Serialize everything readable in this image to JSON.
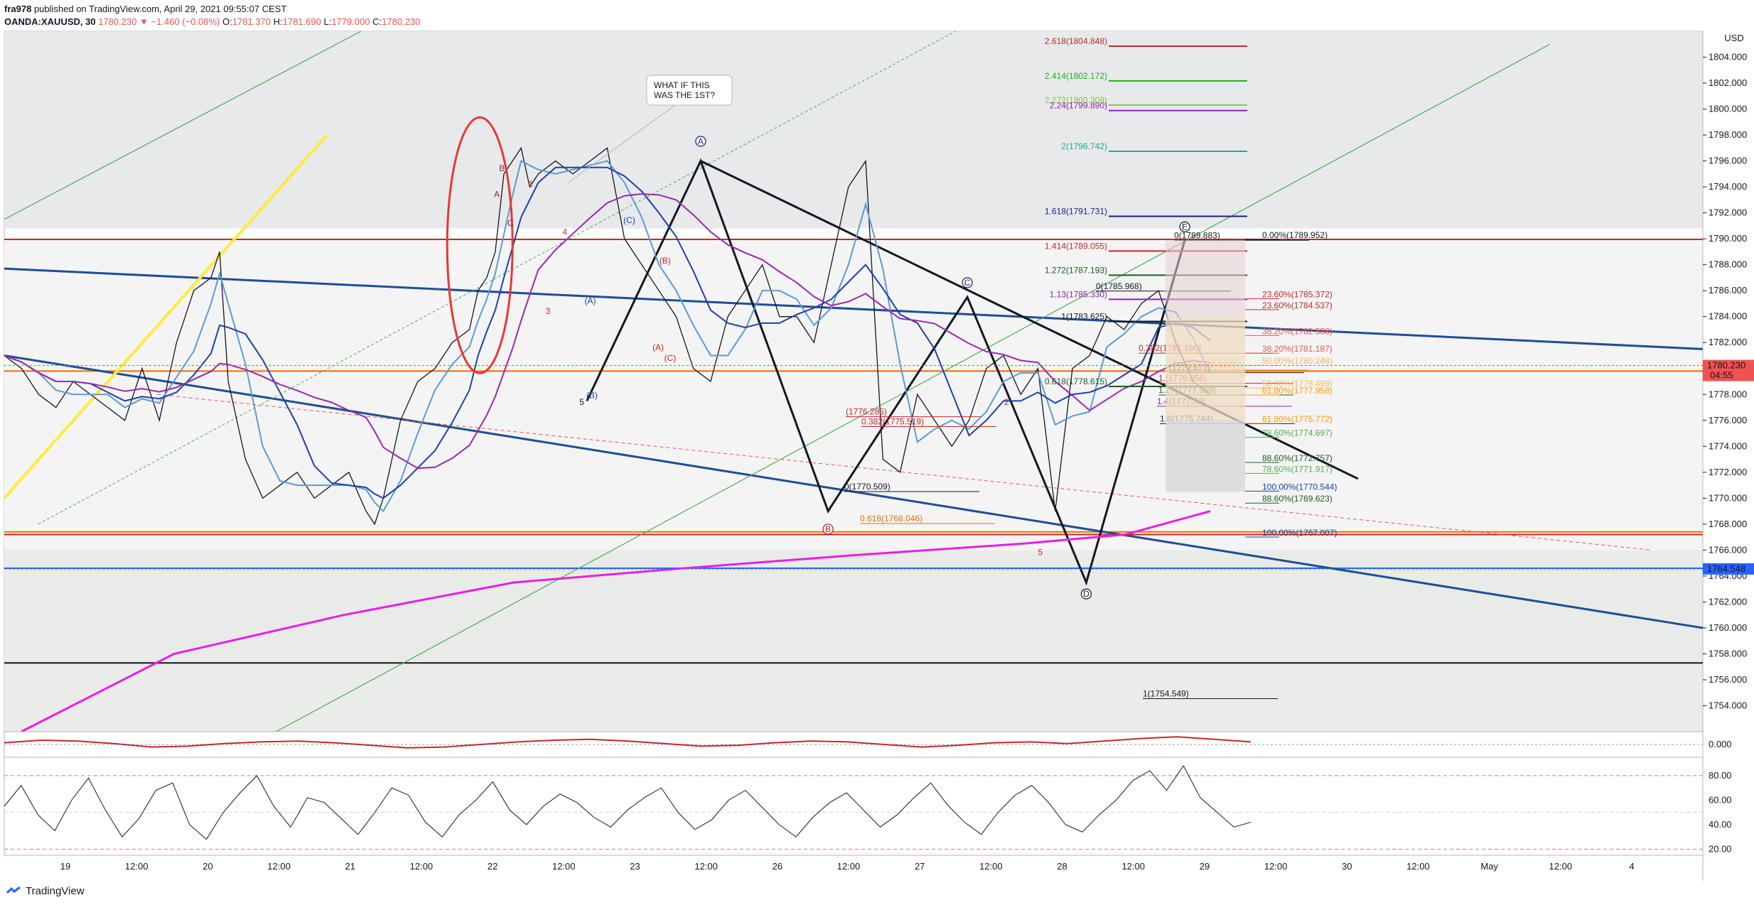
{
  "header": {
    "author": "fra978",
    "published": "published on TradingView.com, April 29, 2021 09:55:07 CEST",
    "symbol": "OANDA:XAUUSD, 30",
    "last": "1780.230",
    "change": "▼ −1.460 (−0.08%)",
    "ohlc_o_label": "O:",
    "ohlc_o": "1781.370",
    "ohlc_h_label": "H:",
    "ohlc_h": "1781.690",
    "ohlc_l_label": "L:",
    "ohlc_l": "1779.000",
    "ohlc_c_label": "C:",
    "ohlc_c": "1780.230"
  },
  "footer": {
    "brand": "TradingView",
    "logo_icon": "tradingview-logo-icon"
  },
  "colors": {
    "up": "#26a69a",
    "down": "#ef5350",
    "candle": "#131722",
    "magenta": "#e91ee5",
    "purple": "#9c27b0",
    "navy": "#1e3a8a",
    "blue": "#2962ff",
    "yellow": "#ffeb3b",
    "red": "#e53935"
  },
  "chart_data": [
    {
      "type": "line",
      "symbol": "OANDA:XAUUSD",
      "timeframe": "30",
      "x_ticks": [
        "19",
        "12:00",
        "20",
        "12:00",
        "21",
        "12:00",
        "22",
        "12:00",
        "23",
        "12:00",
        "26",
        "12:00",
        "27",
        "12:00",
        "28",
        "12:00",
        "29",
        "12:00",
        "30",
        "12:00",
        "May",
        "12:00",
        "4"
      ],
      "y_ticks": [
        "1804.000",
        "1802.000",
        "1800.000",
        "1798.000",
        "1796.000",
        "1794.000",
        "1792.000",
        "1790.000",
        "1788.000",
        "1786.000",
        "1784.000",
        "1782.000",
        "1780.000",
        "1778.000",
        "1776.000",
        "1774.000",
        "1772.000",
        "1770.000",
        "1768.000",
        "1766.000",
        "1764.000",
        "1762.000",
        "1760.000",
        "1758.000",
        "1756.000",
        "1754.000"
      ],
      "y_unit": "USD",
      "ylim": [
        1752.0,
        1806.0
      ],
      "price_labels": [
        {
          "value": 1780.23,
          "text": "1780.230",
          "countdown": "04:55",
          "color": "#ef5350"
        },
        {
          "value": 1764.548,
          "text": "1764.548",
          "color": "#2962ff"
        }
      ],
      "price_path": {
        "x": [
          0,
          10,
          20,
          30,
          40,
          50,
          60,
          70,
          80,
          90,
          100,
          110,
          120,
          125,
          130,
          140,
          150,
          160,
          170,
          180,
          190,
          200,
          210,
          215,
          220,
          230,
          240,
          250,
          260,
          270,
          275,
          280,
          285,
          290,
          295,
          300,
          305,
          310,
          320,
          330,
          340,
          350,
          360,
          370,
          380,
          390,
          400,
          410,
          420,
          430,
          440,
          450,
          460,
          470,
          480,
          490,
          500,
          510,
          520,
          530,
          540,
          550,
          560,
          570,
          580,
          590,
          600,
          610,
          620,
          630,
          640,
          650,
          660,
          670,
          680,
          690,
          700
        ],
        "y": [
          1781,
          1780,
          1778,
          1777,
          1779,
          1778,
          1777,
          1776,
          1780,
          1776,
          1782,
          1786,
          1787,
          1789,
          1779,
          1773,
          1770,
          1771,
          1772,
          1770,
          1771,
          1772,
          1769,
          1768,
          1770,
          1776,
          1779,
          1780,
          1782,
          1783,
          1786,
          1787,
          1789,
          1795,
          1796,
          1797,
          1794,
          1795,
          1796,
          1795,
          1796,
          1797,
          1790,
          1788,
          1786,
          1784,
          1780,
          1779,
          1784,
          1786,
          1788,
          1784,
          1784,
          1782,
          1788,
          1794,
          1796,
          1773,
          1772,
          1778,
          1776,
          1774,
          1776,
          1780,
          1781,
          1778,
          1780,
          1769,
          1780,
          1781,
          1784,
          1783,
          1785,
          1786,
          1782,
          1779,
          1778
        ]
      },
      "series_meta": [
        {
          "role": "price",
          "color": "#131722"
        },
        {
          "role": "ma-fast",
          "color": "#5b9bd5"
        },
        {
          "role": "ma-mid",
          "color": "#1f3fae"
        },
        {
          "role": "ma-slow",
          "color": "#9c27b0"
        },
        {
          "role": "ma-200",
          "color": "#e91ee5"
        }
      ],
      "fib_extensions": [
        {
          "text": "2.618(1804.848)",
          "value": 1804.848,
          "color": "#c62828"
        },
        {
          "text": "2.414(1802.172)",
          "value": 1802.172,
          "color": "#1eae22"
        },
        {
          "text": "2.272(1800.309)",
          "value": 1800.309,
          "color": "#8bc34a"
        },
        {
          "text": "2.24(1799.890)",
          "value": 1799.89,
          "color": "#8e24aa"
        },
        {
          "text": "2(1796.742)",
          "value": 1796.742,
          "color": "#26a69a"
        },
        {
          "text": "1.618(1791.731)",
          "value": 1791.731,
          "color": "#1a237e"
        },
        {
          "text": "1.414(1789.055)",
          "value": 1789.055,
          "color": "#c62828"
        },
        {
          "text": "1.272(1787.193)",
          "value": 1787.193,
          "color": "#1b5e20"
        },
        {
          "text": "1.13(1785.330)",
          "value": 1785.33,
          "color": "#8e24aa"
        },
        {
          "text": "1(1783.625)",
          "value": 1783.625,
          "color": "#131722"
        },
        {
          "text": "0.618(1778.615)",
          "value": 1778.615,
          "color": "#1b5e20"
        },
        {
          "text": "0.382(1775.519)",
          "value": 1775.519,
          "color": "#c62828"
        },
        {
          "text": "0(1789.883)",
          "value": 1789.883,
          "color": "#131722"
        },
        {
          "text": "0(1785.968)",
          "value": 1785.968,
          "color": "#131722"
        },
        {
          "text": "0(1770.509)",
          "value": 1770.509,
          "color": "#131722"
        },
        {
          "text": "0.618(1768.046)",
          "value": 1768.046,
          "color": "#ef6c00"
        },
        {
          "text": "1(1754.549)",
          "value": 1754.549,
          "color": "#131722"
        },
        {
          "text": "0.382(1781.180)",
          "value": 1781.18,
          "color": "#c62828"
        },
        {
          "text": "0.618(1779.890)",
          "value": 1779.89,
          "color": "#ff9800"
        },
        {
          "text": "(1779.677)",
          "value": 1779.677,
          "color": "#131722"
        },
        {
          "text": "1.(1778.856)",
          "value": 1778.856,
          "color": "#c62828"
        },
        {
          "text": "1.27(1777.959)",
          "value": 1777.959,
          "color": "#1b5e20"
        },
        {
          "text": "1.4(1777.09)",
          "value": 1777.09,
          "color": "#8e24aa"
        },
        {
          "text": "1.6(1775.744)",
          "value": 1775.744,
          "color": "#1a237e"
        },
        {
          "text": "(1776.285)",
          "value": 1776.285,
          "color": "#c62828"
        }
      ],
      "fib_retracements": [
        {
          "text": "0.00%(1789.952)",
          "value": 1789.952,
          "color": "#131722"
        },
        {
          "text": "23.60%(1785.372)",
          "value": 1785.372,
          "color": "#c62828"
        },
        {
          "text": "23.60%(1784.537)",
          "value": 1784.537,
          "color": "#c62828"
        },
        {
          "text": "38.20%(1782.538)",
          "value": 1782.538,
          "color": "#ef5350"
        },
        {
          "text": "38.20%(1781.187)",
          "value": 1781.187,
          "color": "#ef5350"
        },
        {
          "text": "50.00%(1780.248)",
          "value": 1780.248,
          "color": "#ffb74d"
        },
        {
          "text": "50.00%(1778.499)",
          "value": 1778.499,
          "color": "#ffb74d"
        },
        {
          "text": "61.80%(1777.958)",
          "value": 1777.958,
          "color": "#ff9800"
        },
        {
          "text": "61.80%(1775.772)",
          "value": 1775.772,
          "color": "#ff9800"
        },
        {
          "text": "78.60%(1774.697)",
          "value": 1774.697,
          "color": "#4caf50"
        },
        {
          "text": "88.60%(1772.757)",
          "value": 1772.757,
          "color": "#1b5e20"
        },
        {
          "text": "78.60%(1771.917)",
          "value": 1771.917,
          "color": "#4caf50"
        },
        {
          "text": "100.00%(1770.544)",
          "value": 1770.544,
          "color": "#1a3fae"
        },
        {
          "text": "88.60%(1769.623)",
          "value": 1769.623,
          "color": "#1b5e20"
        },
        {
          "text": "100.00%(1767.007)",
          "value": 1767.007,
          "color": "#1a3fae"
        }
      ],
      "horizontal_levels": [
        {
          "value": 1789.95,
          "color": "#c62828"
        },
        {
          "value": 1779.8,
          "color": "#ef6c00"
        },
        {
          "value": 1767.4,
          "color": "#ef6c00"
        },
        {
          "value": 1767.2,
          "color": "#c62828"
        },
        {
          "value": 1764.6,
          "color": "#2962ff"
        },
        {
          "value": 1757.3,
          "color": "#131722"
        }
      ],
      "wave_labels": [
        {
          "text": "A",
          "color": "#1a237e",
          "circled": true
        },
        {
          "text": "B",
          "color": "#b71c1c",
          "circled": true
        },
        {
          "text": "C",
          "color": "#1a237e",
          "circled": true
        },
        {
          "text": "D",
          "color": "#131722",
          "circled": true
        },
        {
          "text": "E",
          "color": "#131722",
          "circled": true
        },
        {
          "text": "(A)",
          "color": "#1a3fae"
        },
        {
          "text": "(B)",
          "color": "#1a3fae"
        },
        {
          "text": "(C)",
          "color": "#1a3fae"
        },
        {
          "text": "(A)",
          "color": "#c62828"
        },
        {
          "text": "(B)",
          "color": "#c62828"
        },
        {
          "text": "(C)",
          "color": "#c62828"
        },
        {
          "text": "A",
          "color": "#8d2b2b"
        },
        {
          "text": "B",
          "color": "#8d2b2b"
        },
        {
          "text": "C",
          "color": "#8d2b2b"
        },
        {
          "text": "1",
          "color": "#c62828"
        },
        {
          "text": "2",
          "color": "#c62828"
        },
        {
          "text": "3",
          "color": "#c62828"
        },
        {
          "text": "4",
          "color": "#c62828"
        },
        {
          "text": "5",
          "color": "#c62828"
        },
        {
          "text": "5",
          "color": "#131722"
        }
      ],
      "callout": {
        "text": "WHAT IF THIS WAS THE 1ST?"
      }
    },
    {
      "type": "line",
      "panel": "oscillator",
      "y_ticks": [
        "0.000"
      ],
      "series": [
        {
          "values": [
            0.2,
            0.5,
            0.4,
            0.1,
            -0.3,
            -0.2,
            0.1,
            0.3,
            0.4,
            0.2,
            -0.1,
            -0.4,
            -0.3,
            0.0,
            0.3,
            0.5,
            0.6,
            0.4,
            0.1,
            -0.2,
            -0.1,
            0.2,
            0.4,
            0.3,
            0.0,
            -0.3,
            -0.1,
            0.2,
            0.3,
            0.1,
            0.4,
            0.7,
            0.9,
            0.6,
            0.3
          ]
        }
      ]
    },
    {
      "type": "line",
      "panel": "rsi",
      "y_ticks": [
        "80.00",
        "60.00",
        "40.00",
        "20.00"
      ],
      "levels": [
        80,
        50,
        20
      ],
      "ylim": [
        15,
        95
      ],
      "series": [
        {
          "values": [
            55,
            72,
            48,
            35,
            60,
            78,
            52,
            30,
            45,
            68,
            74,
            40,
            28,
            50,
            66,
            80,
            55,
            38,
            62,
            58,
            45,
            32,
            50,
            70,
            64,
            42,
            30,
            48,
            60,
            75,
            52,
            40,
            55,
            65,
            58,
            46,
            38,
            52,
            62,
            70,
            50,
            36,
            44,
            60,
            68,
            54,
            40,
            30,
            46,
            58,
            66,
            52,
            38,
            48,
            62,
            74,
            56,
            42,
            32,
            50,
            64,
            72,
            58,
            40,
            34,
            48,
            60,
            76,
            84,
            68,
            88,
            62,
            50,
            38,
            42
          ]
        }
      ]
    }
  ]
}
